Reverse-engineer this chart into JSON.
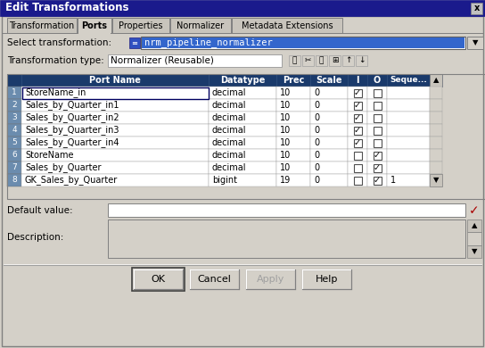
{
  "title": "Edit Transformations",
  "title_bar_color": "#1a1a8c",
  "title_text_color": "#ffffff",
  "bg_color": "#d4d0c8",
  "tabs": [
    "Transformation",
    "Ports",
    "Properties",
    "Normalizer",
    "Metadata Extensions"
  ],
  "active_tab": "Ports",
  "select_transformation_label": "Select transformation:",
  "select_transformation_value": "nrm_pipeline_normalizer",
  "transformation_type_label": "Transformation type:",
  "transformation_type_value": "Normalizer (Reusable)",
  "table_header_color": "#1a3a6b",
  "table_header_text_color": "#ffffff",
  "table_columns": [
    "Port Name",
    "Datatype",
    "Prec",
    "Scale",
    "I",
    "O",
    "Seque..."
  ],
  "rows": [
    {
      "num": 1,
      "port": "StoreName_in",
      "dtype": "decimal",
      "prec": "10",
      "scale": "0",
      "I": true,
      "O": false,
      "seq": ""
    },
    {
      "num": 2,
      "port": "Sales_by_Quarter_in1",
      "dtype": "decimal",
      "prec": "10",
      "scale": "0",
      "I": true,
      "O": false,
      "seq": ""
    },
    {
      "num": 3,
      "port": "Sales_by_Quarter_in2",
      "dtype": "decimal",
      "prec": "10",
      "scale": "0",
      "I": true,
      "O": false,
      "seq": ""
    },
    {
      "num": 4,
      "port": "Sales_by_Quarter_in3",
      "dtype": "decimal",
      "prec": "10",
      "scale": "0",
      "I": true,
      "O": false,
      "seq": ""
    },
    {
      "num": 5,
      "port": "Sales_by_Quarter_in4",
      "dtype": "decimal",
      "prec": "10",
      "scale": "0",
      "I": true,
      "O": false,
      "seq": ""
    },
    {
      "num": 6,
      "port": "StoreName",
      "dtype": "decimal",
      "prec": "10",
      "scale": "0",
      "I": false,
      "O": true,
      "seq": ""
    },
    {
      "num": 7,
      "port": "Sales_by_Quarter",
      "dtype": "decimal",
      "prec": "10",
      "scale": "0",
      "I": false,
      "O": true,
      "seq": ""
    },
    {
      "num": 8,
      "port": "GK_Sales_by_Quarter",
      "dtype": "bigint",
      "prec": "19",
      "scale": "0",
      "I": false,
      "O": true,
      "seq": "1"
    }
  ],
  "default_value_label": "Default value:",
  "description_label": "Description:",
  "buttons": [
    "OK",
    "Cancel",
    "Apply",
    "Help"
  ],
  "row_num_color": "#6b8cae",
  "selected_row": 0,
  "tab_widths": [
    78,
    38,
    64,
    68,
    124
  ]
}
